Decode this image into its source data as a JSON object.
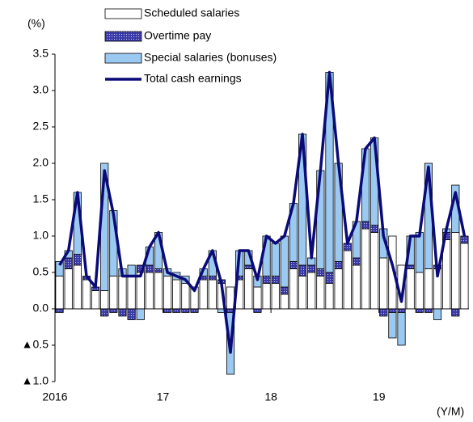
{
  "chart_data": {
    "type": "bar",
    "y_axis_label": "(%)",
    "x_axis_label": "(Y/M)",
    "categories": [
      "2016",
      null,
      null,
      null,
      null,
      null,
      null,
      null,
      null,
      null,
      null,
      null,
      "17",
      null,
      null,
      null,
      null,
      null,
      null,
      null,
      null,
      null,
      null,
      null,
      "18",
      null,
      null,
      null,
      null,
      null,
      null,
      null,
      null,
      null,
      null,
      null,
      "19",
      null,
      null,
      null,
      null,
      null,
      null,
      null,
      null,
      null
    ],
    "series": [
      {
        "name": "Scheduled salaries",
        "color": "#ffffff",
        "values": [
          0.45,
          0.55,
          0.6,
          0.4,
          0.25,
          0.25,
          0.45,
          0.45,
          0.45,
          0.5,
          0.5,
          0.5,
          0.45,
          0.4,
          0.35,
          0.3,
          0.4,
          0.4,
          0.35,
          0.3,
          0.4,
          0.55,
          0.3,
          0.35,
          0.35,
          0.2,
          0.55,
          0.45,
          0.5,
          0.45,
          0.35,
          0.55,
          0.8,
          0.6,
          1.1,
          1.05,
          0.7,
          1.0,
          0.6,
          0.55,
          0.5,
          0.55,
          0.55,
          0.95,
          1.05,
          0.9
        ]
      },
      {
        "name": "Overtime pay",
        "color": "#3a3aa8",
        "values": [
          -0.05,
          0.15,
          0.15,
          0.05,
          0.05,
          -0.1,
          -0.05,
          -0.1,
          -0.15,
          0.1,
          0.1,
          0.05,
          -0.05,
          -0.05,
          -0.05,
          -0.05,
          0.05,
          0.05,
          0.05,
          -0.05,
          0.05,
          0.05,
          -0.05,
          0.1,
          0.1,
          0.1,
          0.1,
          0.15,
          0.1,
          0.1,
          0.15,
          0.1,
          0.1,
          0.1,
          0.1,
          0.1,
          -0.1,
          -0.05,
          -0.05,
          0.05,
          -0.05,
          -0.05,
          0.05,
          0.1,
          -0.1,
          0.1
        ]
      },
      {
        "name": "Special salaries (bonuses)",
        "color": "#9cc9f2",
        "values": [
          0.2,
          0.1,
          0.85,
          0,
          0,
          1.75,
          0.9,
          0.1,
          0.15,
          -0.15,
          0.25,
          0.5,
          0.1,
          0.1,
          0.1,
          0,
          0.1,
          0.35,
          -0.05,
          -0.85,
          0.35,
          0.2,
          0.15,
          0.55,
          0.45,
          0.7,
          0.8,
          1.8,
          0.1,
          1.35,
          2.75,
          1.35,
          0,
          0.5,
          1.0,
          1.2,
          0.4,
          -0.35,
          -0.45,
          0.4,
          0.55,
          1.45,
          -0.15,
          0.05,
          0.65,
          0
        ]
      },
      {
        "name": "Total cash earnings",
        "color": "#0a0a78",
        "type": "line",
        "values": [
          0.6,
          0.8,
          1.6,
          0.45,
          0.3,
          1.9,
          1.3,
          0.45,
          0.45,
          0.45,
          0.85,
          1.05,
          0.5,
          0.45,
          0.4,
          0.25,
          0.55,
          0.8,
          0.35,
          -0.6,
          0.8,
          0.8,
          0.4,
          1.0,
          0.9,
          1.0,
          1.45,
          2.4,
          0.7,
          1.9,
          3.25,
          2.0,
          0.9,
          1.2,
          2.2,
          2.35,
          1.0,
          0.6,
          0.1,
          1.0,
          1.0,
          1.95,
          0.45,
          1.1,
          1.6,
          1.0
        ]
      }
    ],
    "ylim": [
      -1,
      3.5
    ],
    "yticks": [
      {
        "value": 3.5,
        "label": "3.5"
      },
      {
        "value": 3,
        "label": "3.0"
      },
      {
        "value": 2.5,
        "label": "2.5"
      },
      {
        "value": 2,
        "label": "2.0"
      },
      {
        "value": 1.5,
        "label": "1.5"
      },
      {
        "value": 1,
        "label": "1.0"
      },
      {
        "value": 0.5,
        "label": "0.5"
      },
      {
        "value": 0,
        "label": "0.0"
      },
      {
        "value": -0.5,
        "label": "▲0.5"
      },
      {
        "value": -1,
        "label": "▲1.0"
      }
    ]
  }
}
